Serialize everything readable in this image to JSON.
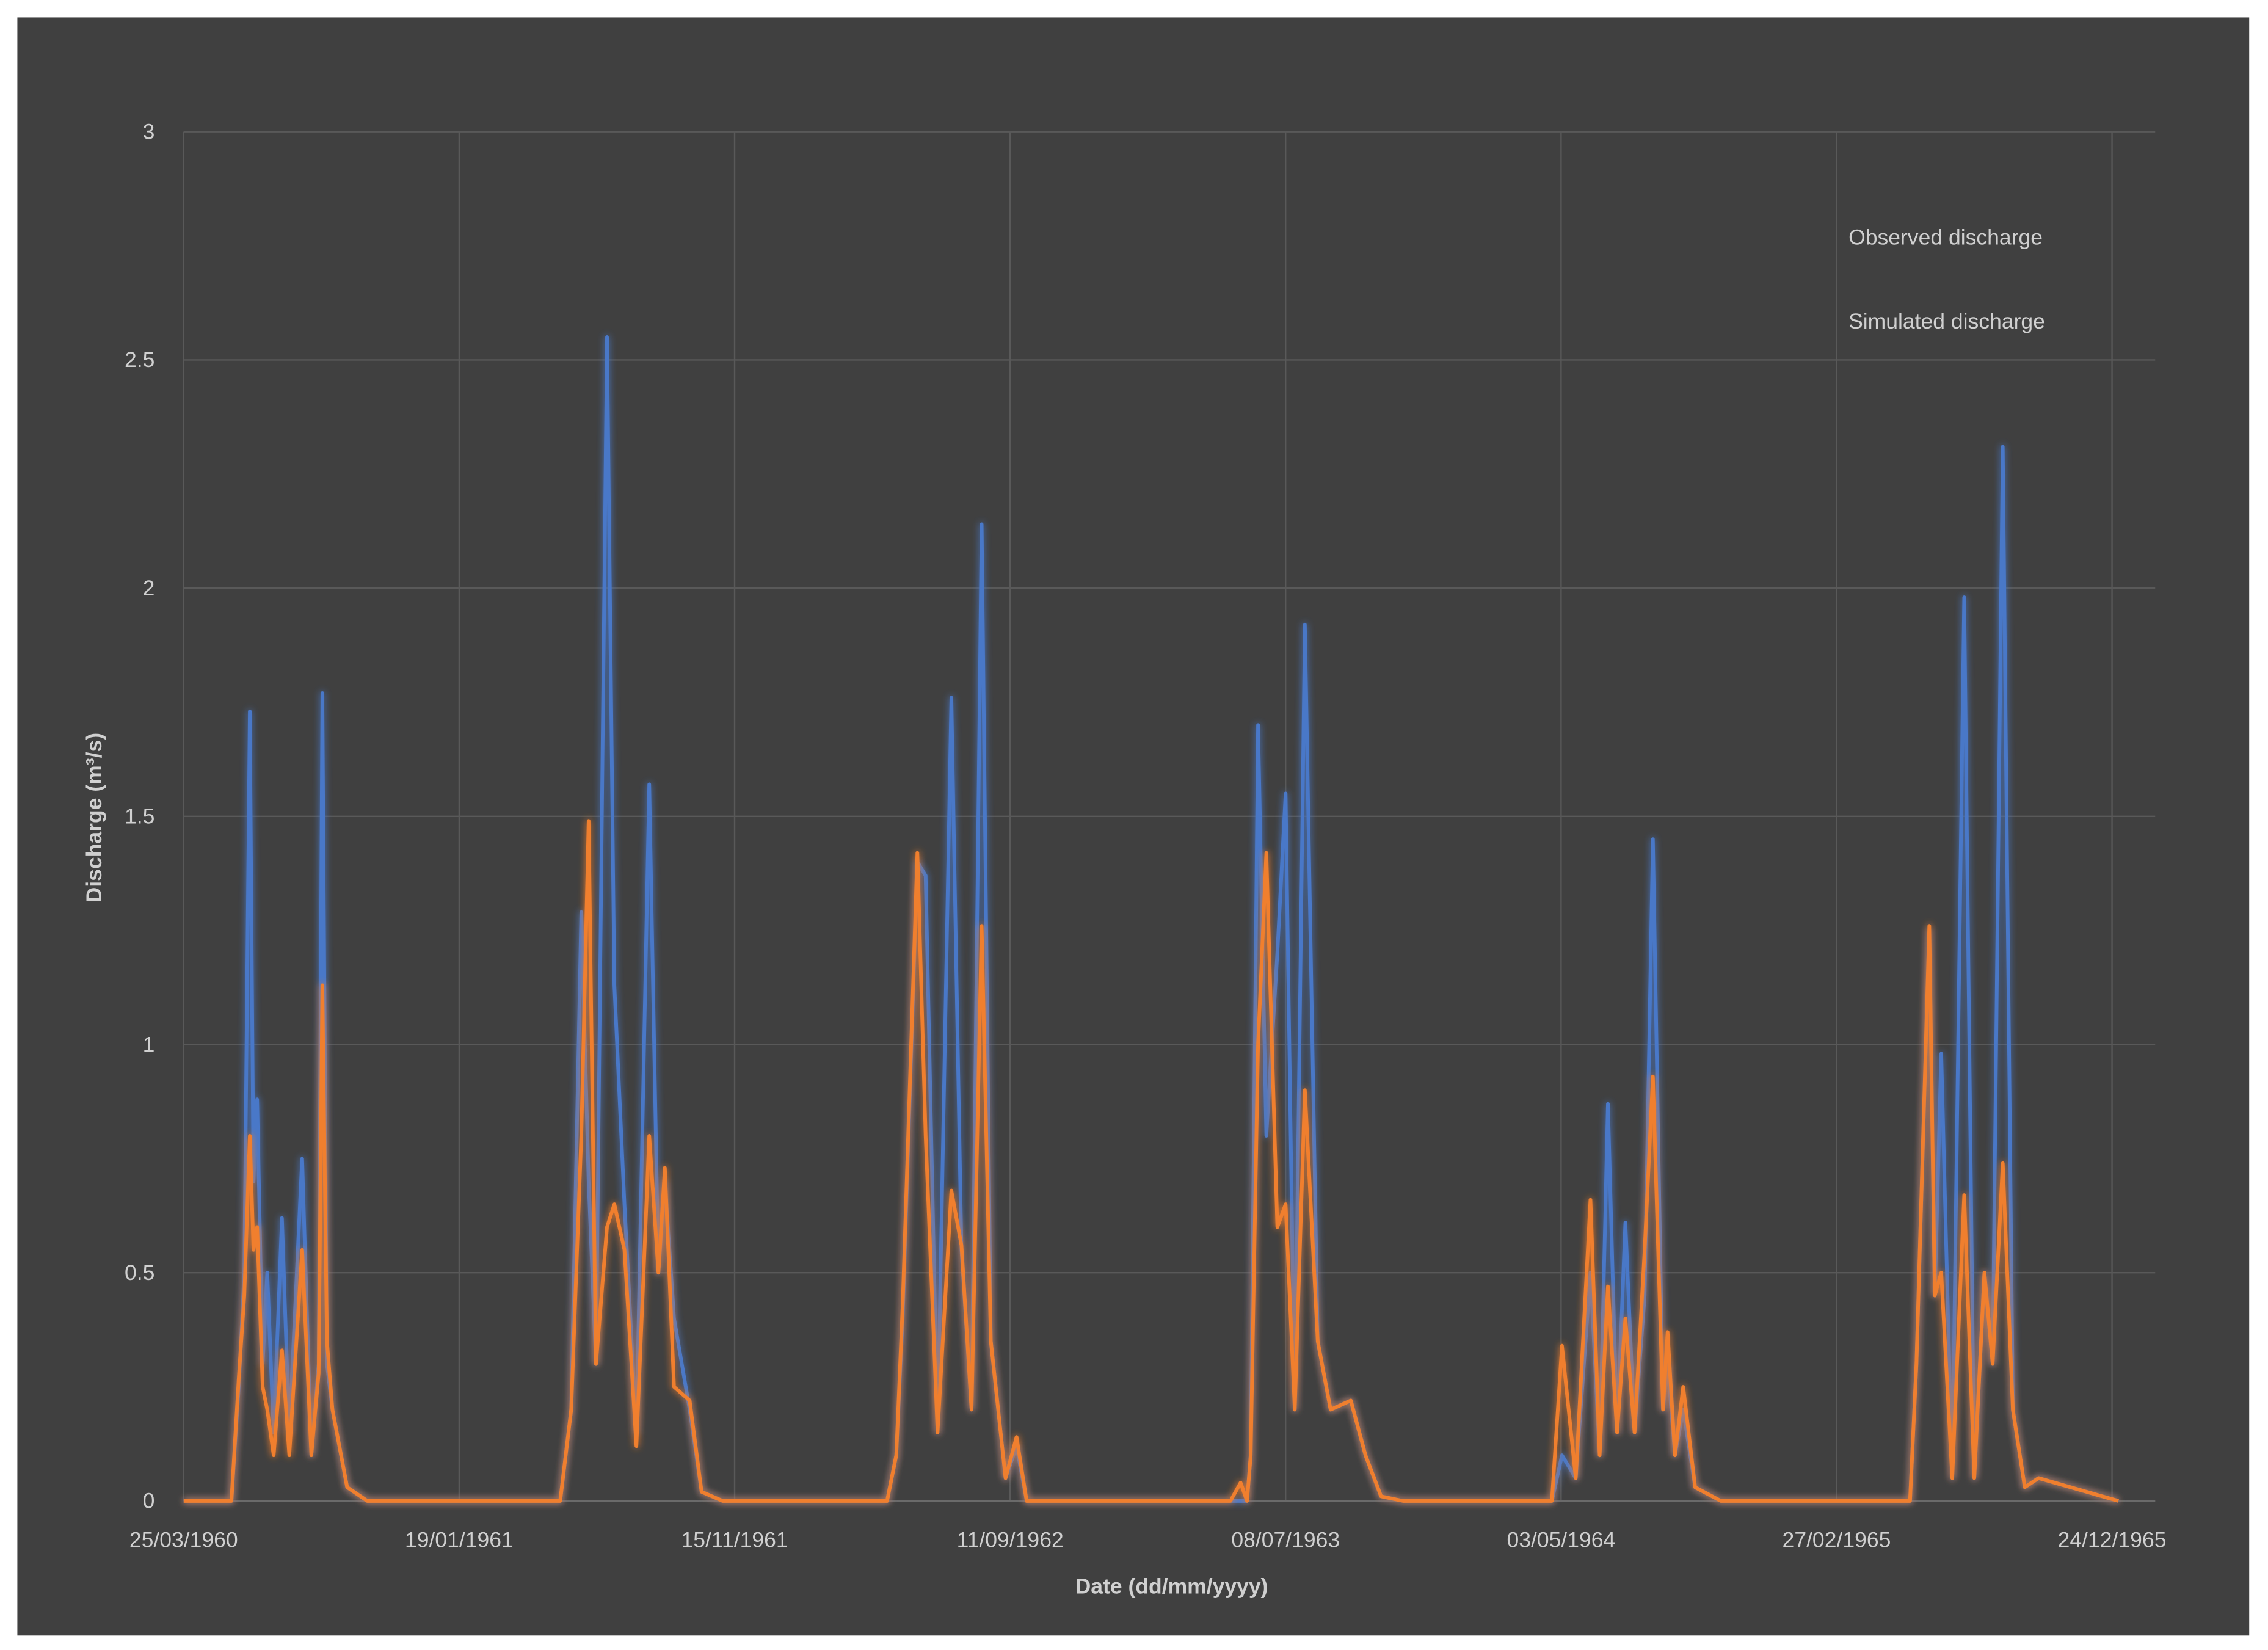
{
  "chart_data": {
    "type": "line",
    "xlabel": "Date (dd/mm/yyyy)",
    "ylabel": "Discharge (m³/s)",
    "x": [
      "25/03/1960",
      "16/05/1960",
      "24/05/1960",
      "30/05/1960",
      "05/06/1960",
      "09/06/1960",
      "13/06/1960",
      "19/06/1960",
      "24/06/1960",
      "01/07/1960",
      "10/07/1960",
      "18/07/1960",
      "01/08/1960",
      "11/08/1960",
      "19/08/1960",
      "23/08/1960",
      "28/08/1960",
      "03/09/1960",
      "19/09/1960",
      "11/10/1960",
      "09/05/1961",
      "21/05/1961",
      "01/06/1961",
      "09/06/1961",
      "17/06/1961",
      "29/06/1961",
      "07/07/1961",
      "18/07/1961",
      "31/07/1961",
      "14/08/1961",
      "24/08/1961",
      "31/08/1961",
      "10/09/1961",
      "27/09/1961",
      "10/10/1961",
      "02/11/1961",
      "30/04/1962",
      "10/05/1962",
      "17/05/1962",
      "02/06/1962",
      "11/06/1962",
      "24/06/1962",
      "09/07/1962",
      "20/07/1962",
      "31/07/1962",
      "11/08/1962",
      "21/08/1962",
      "06/09/1962",
      "18/09/1962",
      "29/09/1962",
      "09/05/1963",
      "20/05/1963",
      "27/05/1963",
      "31/05/1963",
      "08/06/1963",
      "17/06/1963",
      "29/06/1963",
      "08/07/1963",
      "18/07/1963",
      "29/07/1963",
      "12/08/1963",
      "26/08/1963",
      "17/09/1963",
      "03/10/1963",
      "20/10/1963",
      "13/11/1963",
      "23/04/1964",
      "04/05/1964",
      "19/05/1964",
      "04/06/1964",
      "14/06/1964",
      "23/06/1964",
      "03/07/1964",
      "12/07/1964",
      "22/07/1964",
      "02/08/1964",
      "11/08/1964",
      "22/08/1964",
      "27/08/1964",
      "04/09/1964",
      "13/09/1964",
      "26/09/1964",
      "24/10/1964",
      "18/05/1965",
      "25/05/1965",
      "08/06/1965",
      "14/06/1965",
      "21/06/1965",
      "03/07/1965",
      "16/07/1965",
      "27/07/1965",
      "07/08/1965",
      "16/08/1965",
      "27/08/1965",
      "07/09/1965",
      "20/09/1965",
      "05/10/1965",
      "31/12/1965"
    ],
    "series": [
      {
        "name": "Observed discharge",
        "color": "#4a78c8",
        "values": [
          0,
          0,
          0.25,
          0.5,
          1.73,
          0.7,
          0.88,
          0.3,
          0.5,
          0.15,
          0.62,
          0.15,
          0.75,
          0.1,
          0.3,
          1.77,
          0.3,
          0.2,
          0.03,
          0,
          0,
          0.2,
          1.29,
          0.7,
          0.3,
          2.55,
          1.13,
          0.65,
          0.15,
          1.57,
          0.5,
          0.7,
          0.4,
          0.2,
          0.02,
          0,
          0,
          0.1,
          0.4,
          1.4,
          1.37,
          0.15,
          1.76,
          0.55,
          0.2,
          2.14,
          0.35,
          0.05,
          0.12,
          0,
          0,
          0,
          0,
          0.1,
          1.7,
          0.8,
          1.2,
          1.55,
          0.2,
          1.92,
          0.35,
          0.2,
          0.22,
          0.1,
          0.01,
          0,
          0,
          0.1,
          0.05,
          0.5,
          0.1,
          0.87,
          0.15,
          0.61,
          0.15,
          0.45,
          1.45,
          0.2,
          0.3,
          0.1,
          0.2,
          0.03,
          0,
          0,
          0.3,
          1.25,
          0.45,
          0.98,
          0.05,
          1.98,
          0.05,
          0.5,
          0.3,
          2.31,
          0.2,
          0.03,
          0.05,
          0
        ]
      },
      {
        "name": "Simulated discharge",
        "color": "#f07f2e",
        "values": [
          0,
          0,
          0.27,
          0.45,
          0.8,
          0.55,
          0.6,
          0.25,
          0.2,
          0.1,
          0.33,
          0.1,
          0.55,
          0.1,
          0.28,
          1.13,
          0.35,
          0.2,
          0.03,
          0,
          0,
          0.2,
          0.8,
          1.49,
          0.3,
          0.6,
          0.65,
          0.55,
          0.12,
          0.8,
          0.5,
          0.73,
          0.25,
          0.22,
          0.02,
          0,
          0,
          0.1,
          0.43,
          1.42,
          0.8,
          0.15,
          0.68,
          0.56,
          0.2,
          1.26,
          0.35,
          0.05,
          0.14,
          0,
          0,
          0.04,
          0,
          0.1,
          1.0,
          1.42,
          0.6,
          0.65,
          0.2,
          0.9,
          0.35,
          0.2,
          0.22,
          0.1,
          0.01,
          0,
          0,
          0.34,
          0.05,
          0.66,
          0.1,
          0.47,
          0.15,
          0.4,
          0.15,
          0.55,
          0.93,
          0.2,
          0.37,
          0.1,
          0.25,
          0.03,
          0,
          0,
          0.3,
          1.26,
          0.45,
          0.5,
          0.05,
          0.67,
          0.05,
          0.5,
          0.3,
          0.74,
          0.2,
          0.03,
          0.05,
          0
        ]
      }
    ],
    "xlim": [
      "25/03/1960",
      "09/02/1966"
    ],
    "xticks": [
      "25/03/1960",
      "19/01/1961",
      "15/11/1961",
      "11/09/1962",
      "08/07/1963",
      "03/05/1964",
      "27/02/1965",
      "24/12/1965"
    ],
    "ylim": [
      0,
      3
    ],
    "yticks": [
      0,
      0.5,
      1,
      1.5,
      2,
      2.5,
      3
    ],
    "grid": true,
    "legend": "upper right"
  }
}
